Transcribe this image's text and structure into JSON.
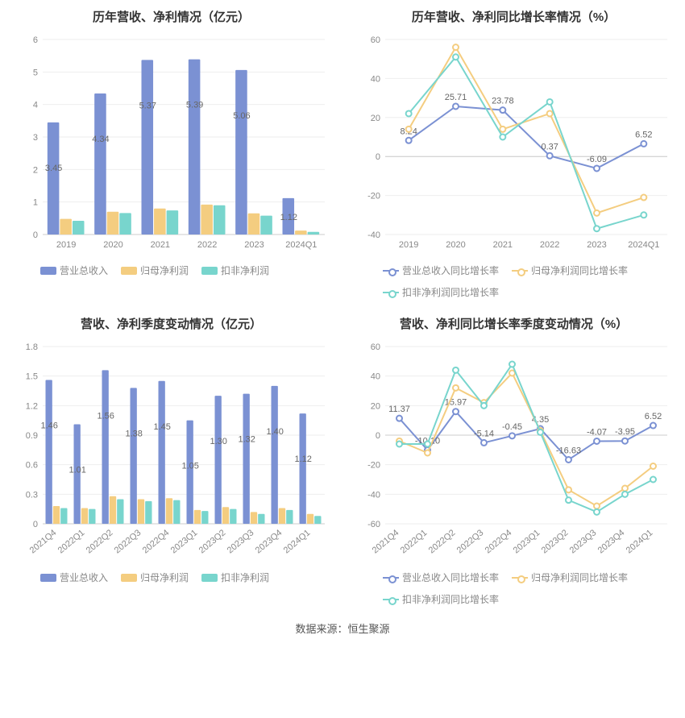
{
  "source_text": "数据来源：恒生聚源",
  "colors": {
    "revenue": "#7b91d3",
    "net_profit": "#f4cd80",
    "deducted_np": "#78d5cd",
    "grid": "#eeeeee",
    "axis": "#cccccc",
    "text": "#888888",
    "title": "#333333",
    "bg": "#ffffff"
  },
  "panel1": {
    "title": "历年营收、净利情况（亿元）",
    "type": "bar",
    "categories": [
      "2019",
      "2020",
      "2021",
      "2022",
      "2023",
      "2024Q1"
    ],
    "series": [
      {
        "name": "营业总收入",
        "color": "#7b91d3",
        "values": [
          3.45,
          4.34,
          5.37,
          5.39,
          5.06,
          1.12
        ],
        "show_labels": true
      },
      {
        "name": "归母净利润",
        "color": "#f4cd80",
        "values": [
          0.48,
          0.7,
          0.8,
          0.92,
          0.65,
          0.12
        ],
        "show_labels": false
      },
      {
        "name": "扣非净利润",
        "color": "#78d5cd",
        "values": [
          0.42,
          0.66,
          0.74,
          0.9,
          0.58,
          0.08
        ],
        "show_labels": false
      }
    ],
    "ylim": [
      0,
      6
    ],
    "ystep": 1,
    "bar_group_width": 0.8,
    "rotate_xlabels": false
  },
  "panel2": {
    "title": "历年营收、净利同比增长率情况（%）",
    "type": "line",
    "categories": [
      "2019",
      "2020",
      "2021",
      "2022",
      "2023",
      "2024Q1"
    ],
    "series": [
      {
        "name": "营业总收入同比增长率",
        "color": "#7b91d3",
        "values": [
          8.24,
          25.71,
          23.78,
          0.37,
          -6.09,
          6.52
        ],
        "point_labels": [
          "8.24",
          "25.71",
          "23.78",
          "0.37",
          "-6.09",
          "6.52"
        ]
      },
      {
        "name": "归母净利润同比增长率",
        "color": "#f4cd80",
        "values": [
          14,
          56,
          14,
          22,
          -29,
          -21
        ],
        "point_labels": []
      },
      {
        "name": "扣非净利润同比增长率",
        "color": "#78d5cd",
        "values": [
          22,
          51,
          10,
          28,
          -37,
          -30
        ],
        "point_labels": []
      }
    ],
    "ylim": [
      -40,
      60
    ],
    "ystep": 20,
    "rotate_xlabels": false
  },
  "panel3": {
    "title": "营收、净利季度变动情况（亿元）",
    "type": "bar",
    "categories": [
      "2021Q4",
      "2022Q1",
      "2022Q2",
      "2022Q3",
      "2022Q4",
      "2023Q1",
      "2023Q2",
      "2023Q3",
      "2023Q4",
      "2024Q1"
    ],
    "series": [
      {
        "name": "营业总收入",
        "color": "#7b91d3",
        "values": [
          1.46,
          1.01,
          1.56,
          1.38,
          1.45,
          1.05,
          1.3,
          1.32,
          1.4,
          1.12
        ],
        "show_labels": true
      },
      {
        "name": "归母净利润",
        "color": "#f4cd80",
        "values": [
          0.18,
          0.16,
          0.28,
          0.25,
          0.26,
          0.14,
          0.17,
          0.12,
          0.16,
          0.1
        ],
        "show_labels": false
      },
      {
        "name": "扣非净利润",
        "color": "#78d5cd",
        "values": [
          0.16,
          0.15,
          0.25,
          0.23,
          0.24,
          0.13,
          0.15,
          0.1,
          0.14,
          0.08
        ],
        "show_labels": false
      }
    ],
    "ylim": [
      0,
      1.8
    ],
    "ystep": 0.3,
    "bar_group_width": 0.8,
    "rotate_xlabels": true
  },
  "panel4": {
    "title": "营收、净利同比增长率季度变动情况（%）",
    "type": "line",
    "categories": [
      "2021Q4",
      "2022Q1",
      "2022Q2",
      "2022Q3",
      "2022Q4",
      "2023Q1",
      "2023Q2",
      "2023Q3",
      "2023Q4",
      "2024Q1"
    ],
    "series": [
      {
        "name": "营业总收入同比增长率",
        "color": "#7b91d3",
        "values": [
          11.37,
          -10.1,
          15.97,
          -5.14,
          -0.45,
          4.35,
          -16.63,
          -4.07,
          -3.95,
          6.52
        ],
        "point_labels": [
          "11.37",
          "-10.10",
          "15.97",
          "-5.14",
          "-0.45",
          "4.35",
          "-16.63",
          "-4.07",
          "-3.95",
          "6.52"
        ]
      },
      {
        "name": "归母净利润同比增长率",
        "color": "#f4cd80",
        "values": [
          -4,
          -12,
          32,
          22,
          42,
          3,
          -37,
          -48,
          -36,
          -21
        ],
        "point_labels": []
      },
      {
        "name": "扣非净利润同比增长率",
        "color": "#78d5cd",
        "values": [
          -6,
          -6,
          44,
          20,
          48,
          2,
          -44,
          -52,
          -40,
          -30
        ],
        "point_labels": []
      }
    ],
    "ylim": [
      -60,
      60
    ],
    "ystep": 20,
    "rotate_xlabels": true
  }
}
